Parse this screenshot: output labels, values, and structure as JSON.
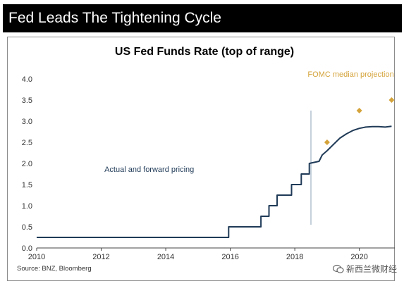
{
  "banner": {
    "title": "Fed Leads The Tightening Cycle"
  },
  "chart_data": {
    "type": "line",
    "title": "US Fed Funds Rate (top of range)",
    "xlabel": "",
    "ylabel": "",
    "xlim": [
      2010,
      2021.1
    ],
    "ylim": [
      0,
      4.0
    ],
    "x_ticks": [
      "2010",
      "2012",
      "2014",
      "2016",
      "2018",
      "2020"
    ],
    "y_ticks": [
      "0.0",
      "0.5",
      "1.0",
      "1.5",
      "2.0",
      "2.5",
      "3.0",
      "3.5",
      "4.0"
    ],
    "grid": false,
    "legend": "none",
    "vertical_marker_x": 2018.5,
    "series": [
      {
        "color": "#1f3a57",
        "x": [
          2010.0,
          2015.95,
          2015.95,
          2016.95,
          2016.95,
          2017.2,
          2017.2,
          2017.45,
          2017.45,
          2017.9,
          2017.9,
          2018.2,
          2018.2,
          2018.45,
          2018.45,
          2018.75,
          2018.85,
          2019.0,
          2019.2,
          2019.4,
          2019.6,
          2019.8,
          2020.0,
          2020.2,
          2020.4,
          2020.6,
          2020.8,
          2021.0
        ],
        "y": [
          0.25,
          0.25,
          0.5,
          0.5,
          0.75,
          0.75,
          1.0,
          1.0,
          1.25,
          1.25,
          1.5,
          1.5,
          1.75,
          1.75,
          2.0,
          2.05,
          2.2,
          2.3,
          2.45,
          2.6,
          2.7,
          2.78,
          2.83,
          2.86,
          2.87,
          2.87,
          2.86,
          2.88
        ]
      },
      {
        "type": "scatter",
        "color": "#d4a33a",
        "x": [
          2019.0,
          2020.0,
          2021.0
        ],
        "y": [
          2.5,
          3.25,
          3.5
        ]
      }
    ],
    "annotations": [
      {
        "text": "Actual and forward pricing",
        "x": 2012.1,
        "y": 1.8,
        "color": "#1f3a57"
      },
      {
        "text": "FOMC median projection",
        "x": 2018.4,
        "y": 4.05,
        "color": "#d4a33a"
      }
    ],
    "source": "Source: BNZ, Bloomberg"
  },
  "watermark": {
    "text": "新西兰微财经"
  }
}
